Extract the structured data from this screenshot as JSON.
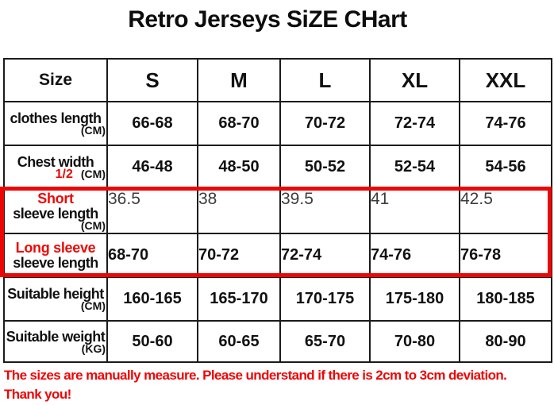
{
  "title": "Retro Jerseys SiZE CHart",
  "table": {
    "header": {
      "size_label": "Size",
      "columns": [
        "S",
        "M",
        "L",
        "XL",
        "XXL"
      ]
    },
    "rows": [
      {
        "label_main": "clothes length",
        "label_sub": "(CM)",
        "values": [
          "66-68",
          "68-70",
          "70-72",
          "72-74",
          "74-76"
        ]
      },
      {
        "label_main": "Chest width",
        "label_accent": "1/2",
        "label_sub": "(CM)",
        "values": [
          "46-48",
          "48-50",
          "50-52",
          "52-54",
          "54-56"
        ]
      },
      {
        "label_accent": "Short",
        "label_main": "sleeve length",
        "label_sub": "(CM)",
        "values": [
          "36.5",
          "38",
          "39.5",
          "41",
          "42.5"
        ]
      },
      {
        "label_accent": "Long sleeve",
        "label_main": "sleeve length",
        "values": [
          "68-70",
          "70-72",
          "72-74",
          "74-76",
          "76-78"
        ]
      },
      {
        "label_main": "Suitable height",
        "label_sub": "(CM)",
        "values": [
          "160-165",
          "165-170",
          "170-175",
          "175-180",
          "180-185"
        ]
      },
      {
        "label_main": "Suitable weight",
        "label_sub": "(KG)",
        "values": [
          "50-60",
          "60-65",
          "65-70",
          "70-80",
          "80-90"
        ]
      }
    ]
  },
  "footnote": {
    "line1": "The sizes are manually measure. Please understand if there is 2cm to 3cm  deviation.",
    "line2": "Thank you!"
  },
  "colors": {
    "accent_red": "#ee0606",
    "grid": "#1b1b1b",
    "text": "#111111"
  },
  "chart_data": {
    "type": "table",
    "title": "Retro Jerseys SiZE CHart",
    "columns": [
      "Size",
      "S",
      "M",
      "L",
      "XL",
      "XXL"
    ],
    "rows": [
      [
        "clothes length (CM)",
        "66-68",
        "68-70",
        "70-72",
        "72-74",
        "74-76"
      ],
      [
        "Chest width 1/2 (CM)",
        "46-48",
        "48-50",
        "50-52",
        "52-54",
        "54-56"
      ],
      [
        "Short sleeve length (CM)",
        "36.5",
        "38",
        "39.5",
        "41",
        "42.5"
      ],
      [
        "Long sleeve sleeve length",
        "68-70",
        "70-72",
        "72-74",
        "74-76",
        "76-78"
      ],
      [
        "Suitable height (CM)",
        "160-165",
        "165-170",
        "170-175",
        "175-180",
        "180-185"
      ],
      [
        "Suitable weight (KG)",
        "50-60",
        "60-65",
        "65-70",
        "70-80",
        "80-90"
      ]
    ],
    "highlighted_rows": [
      2,
      3
    ],
    "note": "The sizes are manually measure. Please understand if there is 2cm to 3cm  deviation. Thank you!"
  }
}
